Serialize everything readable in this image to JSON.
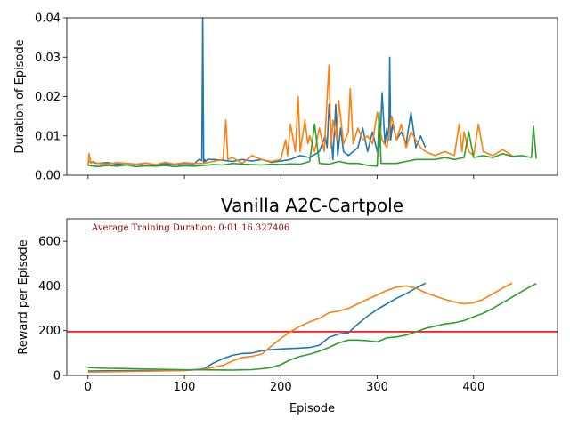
{
  "chart_data": [
    {
      "type": "line",
      "title": "",
      "xlabel": "",
      "ylabel": "Duration of Episode",
      "xlim": [
        -22,
        487
      ],
      "ylim": [
        0,
        0.04
      ],
      "yticks": [
        "0.00",
        "0.01",
        "0.02",
        "0.03",
        "0.04"
      ],
      "xticks": [
        0,
        100,
        200,
        300,
        400
      ],
      "show_x_tick_labels": false,
      "grid": false,
      "series": [
        {
          "color": "#1f77b4",
          "x": [
            0,
            10,
            20,
            30,
            40,
            50,
            60,
            70,
            80,
            90,
            100,
            110,
            115,
            118,
            119,
            120,
            121,
            122,
            124,
            130,
            140,
            150,
            160,
            170,
            180,
            190,
            200,
            210,
            220,
            230,
            240,
            246,
            248,
            250,
            254,
            257,
            259,
            262,
            265,
            270,
            280,
            285,
            290,
            295,
            300,
            303,
            305,
            308,
            310,
            312,
            313,
            314,
            316,
            320,
            325,
            330,
            335,
            340,
            345,
            350
          ],
          "y": [
            0.0035,
            0.003,
            0.0032,
            0.0028,
            0.003,
            0.0027,
            0.0031,
            0.0026,
            0.0029,
            0.0028,
            0.003,
            0.0029,
            0.004,
            0.0037,
            0.04,
            0.003,
            0.004,
            0.0035,
            0.004,
            0.004,
            0.0038,
            0.0035,
            0.004,
            0.0036,
            0.004,
            0.0033,
            0.0036,
            0.004,
            0.005,
            0.0045,
            0.006,
            0.01,
            0.007,
            0.018,
            0.004,
            0.018,
            0.005,
            0.012,
            0.006,
            0.005,
            0.007,
            0.012,
            0.006,
            0.011,
            0.006,
            0.008,
            0.021,
            0.008,
            0.012,
            0.009,
            0.03,
            0.009,
            0.013,
            0.009,
            0.011,
            0.008,
            0.016,
            0.007,
            0.01,
            0.007
          ]
        },
        {
          "color": "#ff7f0e",
          "x": [
            0,
            1,
            3,
            5,
            10,
            20,
            30,
            40,
            50,
            60,
            70,
            80,
            90,
            100,
            110,
            120,
            130,
            140,
            143,
            145,
            150,
            160,
            170,
            180,
            190,
            200,
            205,
            207,
            210,
            215,
            218,
            220,
            225,
            228,
            230,
            235,
            240,
            245,
            250,
            252,
            254,
            258,
            260,
            265,
            270,
            272,
            275,
            280,
            285,
            290,
            295,
            300,
            305,
            310,
            315,
            320,
            325,
            330,
            335,
            340,
            345,
            350,
            360,
            370,
            380,
            385,
            388,
            390,
            395,
            400,
            405,
            410,
            420,
            430,
            440
          ],
          "y": [
            0.0025,
            0.0055,
            0.003,
            0.0035,
            0.003,
            0.0028,
            0.0032,
            0.003,
            0.0028,
            0.0031,
            0.0027,
            0.0033,
            0.0028,
            0.0032,
            0.003,
            0.003,
            0.0035,
            0.004,
            0.014,
            0.004,
            0.0045,
            0.003,
            0.005,
            0.004,
            0.0035,
            0.004,
            0.009,
            0.005,
            0.013,
            0.006,
            0.02,
            0.006,
            0.014,
            0.008,
            0.01,
            0.006,
            0.012,
            0.006,
            0.028,
            0.007,
            0.014,
            0.009,
            0.019,
            0.008,
            0.011,
            0.022,
            0.008,
            0.012,
            0.009,
            0.01,
            0.008,
            0.016,
            0.009,
            0.007,
            0.015,
            0.009,
            0.013,
            0.007,
            0.011,
            0.009,
            0.007,
            0.006,
            0.005,
            0.006,
            0.005,
            0.013,
            0.006,
            0.011,
            0.006,
            0.005,
            0.013,
            0.006,
            0.005,
            0.0065,
            0.005
          ]
        },
        {
          "color": "#2ca02c",
          "x": [
            0,
            10,
            20,
            30,
            40,
            50,
            60,
            70,
            80,
            90,
            100,
            110,
            120,
            130,
            140,
            150,
            160,
            170,
            180,
            190,
            200,
            210,
            220,
            230,
            235,
            240,
            250,
            260,
            270,
            280,
            290,
            300,
            302,
            304,
            310,
            320,
            330,
            340,
            350,
            360,
            370,
            380,
            390,
            395,
            400,
            410,
            420,
            430,
            440,
            450,
            460,
            462,
            465
          ],
          "y": [
            0.0025,
            0.0022,
            0.0025,
            0.0023,
            0.0026,
            0.0022,
            0.0024,
            0.0023,
            0.0025,
            0.0022,
            0.0024,
            0.0023,
            0.0025,
            0.0027,
            0.0026,
            0.003,
            0.0028,
            0.0027,
            0.0026,
            0.0028,
            0.0027,
            0.0029,
            0.0028,
            0.0035,
            0.013,
            0.003,
            0.0028,
            0.0035,
            0.003,
            0.003,
            0.0025,
            0.0023,
            0.016,
            0.003,
            0.003,
            0.003,
            0.0035,
            0.004,
            0.004,
            0.004,
            0.0045,
            0.004,
            0.0045,
            0.011,
            0.0045,
            0.005,
            0.0045,
            0.0055,
            0.0048,
            0.005,
            0.0045,
            0.0125,
            0.0042
          ]
        }
      ]
    },
    {
      "type": "line",
      "title": "Vanilla A2C-Cartpole",
      "xlabel": "Episode",
      "ylabel": "Reward per Episode",
      "xlim": [
        -22,
        487
      ],
      "ylim": [
        0,
        700
      ],
      "xticks": [
        0,
        100,
        200,
        300,
        400
      ],
      "yticks": [
        0,
        200,
        400,
        600
      ],
      "grid": false,
      "annotation": "Average Training Duration: 0:01:16.327406",
      "hline": {
        "y": 195,
        "color": "#ff0000"
      },
      "series": [
        {
          "color": "#1f77b4",
          "x": [
            0,
            50,
            100,
            110,
            120,
            130,
            140,
            150,
            160,
            170,
            180,
            190,
            200,
            210,
            220,
            230,
            240,
            250,
            260,
            270,
            280,
            290,
            300,
            310,
            320,
            330,
            340,
            350
          ],
          "y": [
            20,
            22,
            22,
            25,
            30,
            55,
            75,
            90,
            98,
            100,
            110,
            115,
            118,
            120,
            122,
            125,
            135,
            170,
            185,
            190,
            230,
            265,
            295,
            320,
            345,
            365,
            390,
            412
          ]
        },
        {
          "color": "#ff7f0e",
          "x": [
            0,
            50,
            100,
            120,
            140,
            150,
            160,
            170,
            180,
            190,
            200,
            210,
            220,
            230,
            240,
            250,
            260,
            270,
            280,
            290,
            300,
            310,
            320,
            330,
            340,
            350,
            360,
            370,
            380,
            390,
            400,
            410,
            420,
            430,
            440
          ],
          "y": [
            15,
            18,
            22,
            28,
            45,
            65,
            80,
            85,
            95,
            130,
            165,
            195,
            220,
            240,
            255,
            280,
            288,
            300,
            320,
            340,
            360,
            380,
            395,
            400,
            390,
            370,
            355,
            340,
            328,
            320,
            325,
            340,
            365,
            390,
            412
          ]
        },
        {
          "color": "#2ca02c",
          "x": [
            0,
            20,
            50,
            100,
            120,
            150,
            160,
            170,
            180,
            190,
            200,
            210,
            220,
            230,
            240,
            250,
            260,
            270,
            280,
            290,
            300,
            310,
            320,
            330,
            340,
            350,
            360,
            370,
            380,
            390,
            400,
            410,
            420,
            430,
            440,
            450,
            460,
            465
          ],
          "y": [
            35,
            32,
            30,
            25,
            25,
            24,
            25,
            26,
            30,
            35,
            48,
            70,
            85,
            95,
            108,
            125,
            145,
            158,
            158,
            155,
            150,
            168,
            172,
            180,
            195,
            210,
            220,
            230,
            235,
            245,
            262,
            278,
            300,
            325,
            350,
            375,
            400,
            410
          ]
        }
      ]
    }
  ]
}
